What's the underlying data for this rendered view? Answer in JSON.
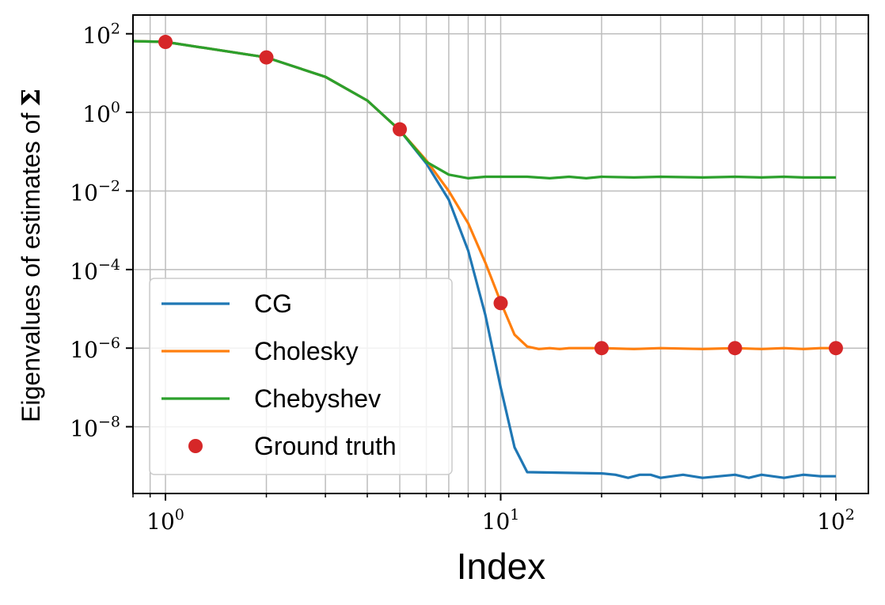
{
  "chart_data": {
    "type": "line",
    "x_scale": "log",
    "y_scale": "log",
    "xlim": [
      0.8,
      125
    ],
    "ylim": [
      2e-10,
      300
    ],
    "xlabel": "Index",
    "ylabel": "Eigenvalues of estimates of",
    "ylabel_symbol": "Σ",
    "grid": true,
    "legend_position": "lower-left",
    "x_ticks": [
      {
        "value": 1,
        "base": "10",
        "exp": "0"
      },
      {
        "value": 10,
        "base": "10",
        "exp": "1"
      },
      {
        "value": 100,
        "base": "10",
        "exp": "2"
      }
    ],
    "y_ticks": [
      {
        "value": 100,
        "base": "10",
        "exp": "2"
      },
      {
        "value": 1,
        "base": "10",
        "exp": "0"
      },
      {
        "value": 0.01,
        "base": "10",
        "exp": "−2"
      },
      {
        "value": 0.0001,
        "base": "10",
        "exp": "−4"
      },
      {
        "value": 1e-06,
        "base": "10",
        "exp": "−6"
      },
      {
        "value": 1e-08,
        "base": "10",
        "exp": "−8"
      }
    ],
    "series": [
      {
        "name": "CG",
        "color": "#1f77b4",
        "points": [
          [
            0.8,
            65
          ],
          [
            1,
            62
          ],
          [
            2,
            25
          ],
          [
            3,
            8
          ],
          [
            4,
            2
          ],
          [
            5,
            0.35
          ],
          [
            6,
            0.05
          ],
          [
            7,
            0.006
          ],
          [
            8,
            0.0003
          ],
          [
            9,
            7e-06
          ],
          [
            10,
            1e-07
          ],
          [
            11,
            3e-09
          ],
          [
            12,
            7e-10
          ],
          [
            20,
            6.5e-10
          ],
          [
            22,
            6e-10
          ],
          [
            24,
            5e-10
          ],
          [
            26,
            6e-10
          ],
          [
            28,
            6e-10
          ],
          [
            30,
            5e-10
          ],
          [
            35,
            6e-10
          ],
          [
            40,
            5e-10
          ],
          [
            50,
            6e-10
          ],
          [
            55,
            5e-10
          ],
          [
            60,
            6e-10
          ],
          [
            70,
            5e-10
          ],
          [
            80,
            6e-10
          ],
          [
            90,
            5.5e-10
          ],
          [
            100,
            5.5e-10
          ]
        ]
      },
      {
        "name": "Cholesky",
        "color": "#ff7f0e",
        "points": [
          [
            0.8,
            65
          ],
          [
            1,
            62
          ],
          [
            2,
            25
          ],
          [
            3,
            8
          ],
          [
            4,
            2
          ],
          [
            5,
            0.35
          ],
          [
            6,
            0.06
          ],
          [
            7,
            0.01
          ],
          [
            8,
            0.0015
          ],
          [
            9,
            0.00015
          ],
          [
            10,
            1.5e-05
          ],
          [
            11,
            2.2e-06
          ],
          [
            12,
            1.1e-06
          ],
          [
            13,
            9.5e-07
          ],
          [
            14,
            1e-06
          ],
          [
            15,
            9.5e-07
          ],
          [
            16,
            1e-06
          ],
          [
            20,
            1e-06
          ],
          [
            25,
            9.5e-07
          ],
          [
            30,
            1e-06
          ],
          [
            40,
            9.5e-07
          ],
          [
            50,
            1e-06
          ],
          [
            60,
            9.5e-07
          ],
          [
            70,
            1e-06
          ],
          [
            80,
            9.5e-07
          ],
          [
            90,
            1e-06
          ],
          [
            100,
            1e-06
          ]
        ]
      },
      {
        "name": "Chebyshev",
        "color": "#2ca02c",
        "points": [
          [
            0.8,
            65
          ],
          [
            1,
            62
          ],
          [
            2,
            25
          ],
          [
            3,
            8
          ],
          [
            4,
            2
          ],
          [
            5,
            0.35
          ],
          [
            6,
            0.055
          ],
          [
            7,
            0.026
          ],
          [
            8,
            0.021
          ],
          [
            9,
            0.023
          ],
          [
            10,
            0.023
          ],
          [
            12,
            0.023
          ],
          [
            14,
            0.021
          ],
          [
            16,
            0.023
          ],
          [
            18,
            0.021
          ],
          [
            20,
            0.023
          ],
          [
            25,
            0.022
          ],
          [
            30,
            0.023
          ],
          [
            40,
            0.022
          ],
          [
            50,
            0.023
          ],
          [
            60,
            0.022
          ],
          [
            70,
            0.023
          ],
          [
            80,
            0.022
          ],
          [
            90,
            0.022
          ],
          [
            100,
            0.022
          ]
        ]
      }
    ],
    "ground_truth": {
      "name": "Ground truth",
      "color": "#d62728",
      "points": [
        [
          1,
          62
        ],
        [
          2,
          25
        ],
        [
          5,
          0.37
        ],
        [
          10,
          1.4e-05
        ],
        [
          20,
          1e-06
        ],
        [
          50,
          1e-06
        ],
        [
          100,
          1e-06
        ]
      ]
    }
  }
}
